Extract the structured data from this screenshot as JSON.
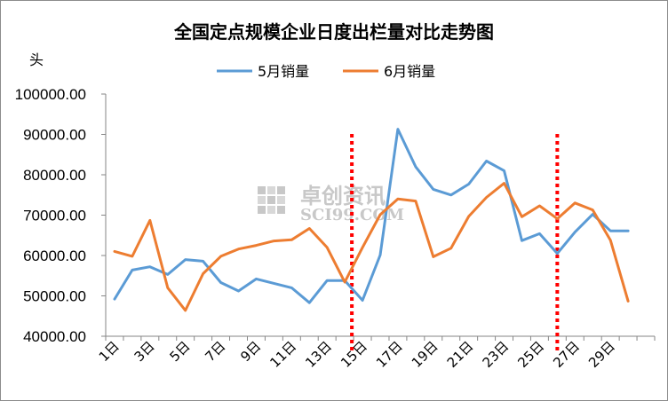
{
  "chart_data": {
    "type": "line",
    "title": "全国定点规模企业日度出栏量对比走势图",
    "ylabel": "头",
    "ylim": [
      40000,
      100000
    ],
    "y_ticks": [
      "40000.00",
      "50000.00",
      "60000.00",
      "70000.00",
      "80000.00",
      "90000.00",
      "100000.00"
    ],
    "x_tick_labels": [
      "1日",
      "3日",
      "5日",
      "7日",
      "9日",
      "11日",
      "13日",
      "15日",
      "17日",
      "19日",
      "21日",
      "23日",
      "25日",
      "27日",
      "29日"
    ],
    "days": [
      1,
      2,
      3,
      4,
      5,
      6,
      7,
      8,
      9,
      10,
      11,
      12,
      13,
      14,
      15,
      16,
      17,
      18,
      19,
      20,
      21,
      22,
      23,
      24,
      25,
      26,
      27,
      28,
      29,
      30,
      31
    ],
    "legend_position": "top",
    "series": [
      {
        "name": "5月销量",
        "color": "#5b9bd5",
        "values": [
          49200,
          56400,
          57200,
          55300,
          59000,
          58600,
          53300,
          51200,
          54200,
          53100,
          52000,
          48300,
          53800,
          53800,
          48900,
          60100,
          91300,
          82000,
          76400,
          75000,
          77700,
          83400,
          81000,
          63700,
          65400,
          60500,
          65800,
          70200,
          66100,
          66100,
          null
        ]
      },
      {
        "name": "6月销量",
        "color": "#ed7d31",
        "values": [
          61000,
          59800,
          68700,
          52000,
          46400,
          55500,
          59800,
          61600,
          62500,
          63600,
          63900,
          66700,
          62000,
          53400,
          62000,
          70100,
          74000,
          73500,
          59700,
          61800,
          69700,
          74400,
          77900,
          69600,
          72300,
          69100,
          73000,
          71300,
          63800,
          48700,
          null
        ]
      }
    ],
    "reference_lines": [
      {
        "day": 14.4,
        "color": "#ff0000",
        "style": "dotted"
      },
      {
        "day": 26.0,
        "color": "#ff0000",
        "style": "dotted"
      }
    ],
    "watermark": {
      "cn": "卓创资讯",
      "en": "SCI99.COM",
      "icon": "sci99-logo-icon"
    }
  }
}
